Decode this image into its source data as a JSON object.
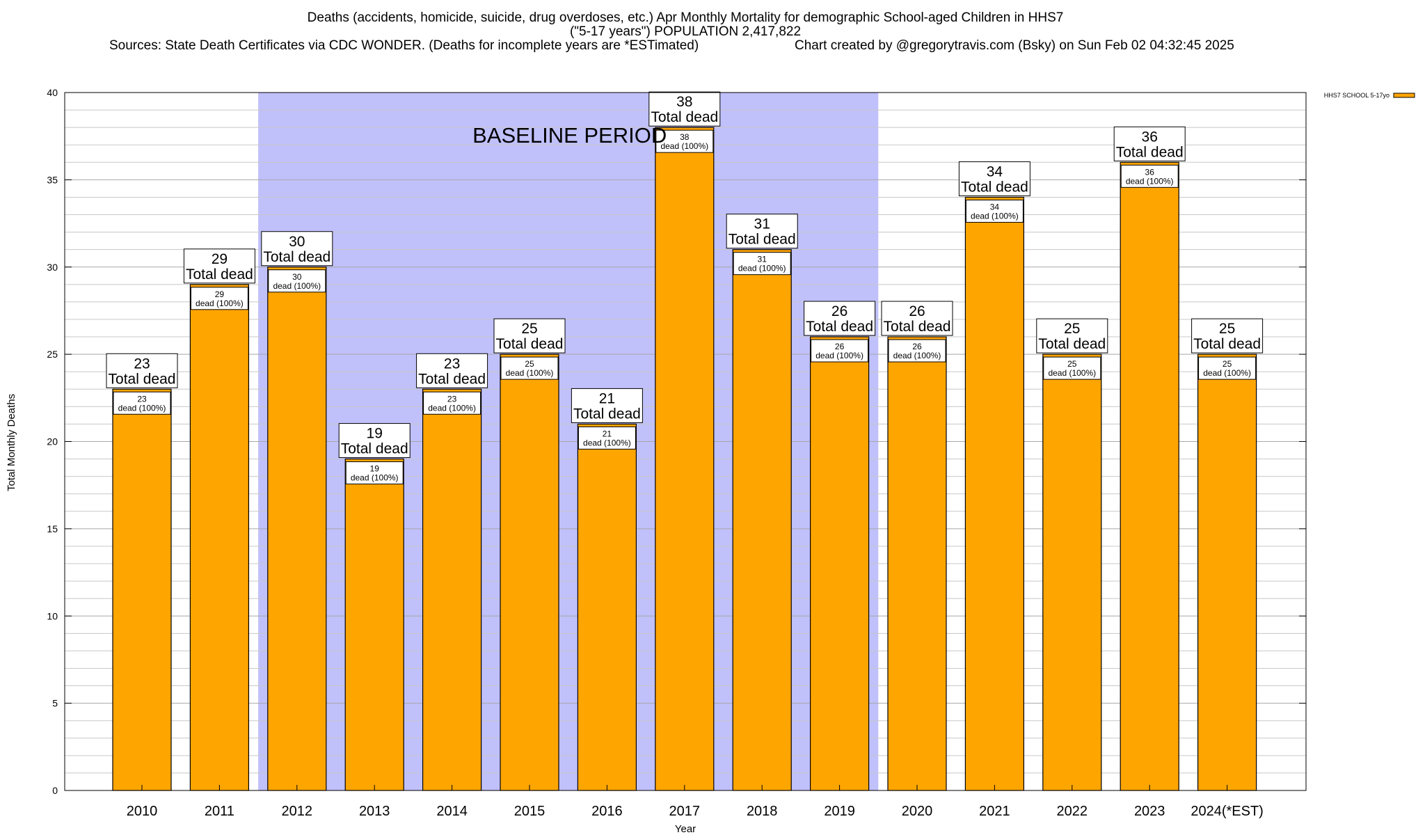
{
  "chart_data": {
    "type": "bar",
    "title_lines": [
      "Deaths (accidents, homicide, suicide, drug overdoses, etc.) Apr Monthly Mortality for demographic School-aged Children in HHS7",
      "(\"5-17 years\") POPULATION 2,417,822"
    ],
    "sources": "Sources: State Death Certificates via CDC WONDER. (Deaths for incomplete years are *ESTimated)",
    "credit": "Chart created by @gregorytravis.com (Bsky) on Sun Feb 02 04:32:45 2025",
    "xlabel": "Year",
    "ylabel": "Total Monthly Deaths",
    "ylim": [
      0,
      40
    ],
    "yticks": [
      0,
      5,
      10,
      15,
      20,
      25,
      30,
      35,
      40
    ],
    "categories": [
      "2010",
      "2011",
      "2012",
      "2013",
      "2014",
      "2015",
      "2016",
      "2017",
      "2018",
      "2019",
      "2020",
      "2021",
      "2022",
      "2023",
      "2024(*EST)"
    ],
    "series": [
      {
        "name": "HHS7 SCHOOL 5-17yo",
        "values": [
          23,
          29,
          30,
          19,
          23,
          25,
          21,
          38,
          31,
          26,
          26,
          34,
          25,
          36,
          25
        ]
      }
    ],
    "total_label_suffix": "Total dead",
    "inner_label_suffix": "dead (100%)",
    "baseline_period": {
      "label": "BASELINE PERIOD",
      "from": "2012",
      "to": "2019"
    },
    "grid": true,
    "legend_position": "top-right",
    "colors": {
      "bar": "#ffa500",
      "baseline_band": "#c0c0fb",
      "grid": "#c8c8c8"
    }
  }
}
